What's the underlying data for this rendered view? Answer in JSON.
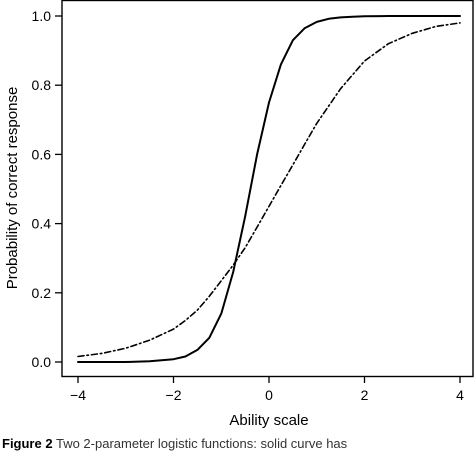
{
  "chart_data": {
    "type": "line",
    "xlabel": "Ability scale",
    "ylabel": "Probability of correct response",
    "xlim": [
      -4,
      4
    ],
    "ylim": [
      0,
      1
    ],
    "x_ticks": [
      "−4",
      "−2",
      "0",
      "2",
      "4"
    ],
    "y_ticks": [
      "0.0",
      "0.2",
      "0.4",
      "0.6",
      "0.8",
      "1.0"
    ],
    "grid": false,
    "legend": "none",
    "series": [
      {
        "style": "solid",
        "x": [
          -4,
          -3.5,
          -3,
          -2.5,
          -2,
          -1.75,
          -1.5,
          -1.25,
          -1,
          -0.75,
          -0.5,
          -0.25,
          0,
          0.25,
          0.5,
          0.75,
          1,
          1.25,
          1.5,
          1.75,
          2,
          2.5,
          3,
          3.5,
          4
        ],
        "y": [
          0.0,
          0.0,
          0.0,
          0.002,
          0.008,
          0.016,
          0.035,
          0.07,
          0.14,
          0.26,
          0.42,
          0.6,
          0.75,
          0.86,
          0.93,
          0.965,
          0.983,
          0.992,
          0.996,
          0.998,
          0.999,
          1.0,
          1.0,
          1.0,
          1.0
        ]
      },
      {
        "style": "dash-dot",
        "x": [
          -4,
          -3.5,
          -3,
          -2.5,
          -2,
          -1.75,
          -1.5,
          -1.25,
          -1,
          -0.75,
          -0.5,
          -0.25,
          0,
          0.25,
          0.5,
          0.75,
          1,
          1.25,
          1.5,
          1.75,
          2,
          2.5,
          3,
          3.5,
          4
        ],
        "y": [
          0.016,
          0.025,
          0.04,
          0.063,
          0.095,
          0.12,
          0.15,
          0.19,
          0.235,
          0.28,
          0.33,
          0.39,
          0.45,
          0.51,
          0.57,
          0.63,
          0.69,
          0.74,
          0.79,
          0.83,
          0.87,
          0.92,
          0.95,
          0.97,
          0.98
        ]
      }
    ]
  },
  "caption": {
    "label": "Figure 2",
    "text": "Two 2-parameter logistic functions: solid curve has"
  },
  "colors": {
    "axis": "#000000",
    "line": "#000000"
  }
}
